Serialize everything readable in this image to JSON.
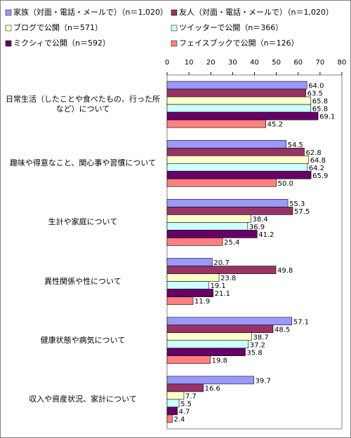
{
  "chart_data": {
    "type": "hbar",
    "categories": [
      "日常生活（したことや食べたもの、行った所など）について",
      "趣味や得意なこと、関心事や習慣について",
      "生計や家庭について",
      "異性関係や性について",
      "健康状態や病気について",
      "収入や資産状況、家計について"
    ],
    "series": [
      {
        "name": "家族（対面・電話・メールで）（n＝1,020）",
        "color": "#9999ff",
        "values": [
          64.0,
          54.5,
          55.3,
          20.7,
          57.1,
          39.7
        ],
        "value_labels": [
          "64.0",
          "54.5",
          "55.3",
          "20.7",
          "57.1",
          "39.7"
        ]
      },
      {
        "name": "友人（対面・電話・メールで）（n＝1,020）",
        "color": "#993366",
        "values": [
          63.5,
          62.8,
          57.5,
          49.8,
          48.5,
          16.6
        ],
        "value_labels": [
          "63.5",
          "62.8",
          "57.5",
          "49.8",
          "48.5",
          "16.6"
        ]
      },
      {
        "name": "ブログで公開（n＝571）",
        "color": "#ffffcc",
        "values": [
          65.8,
          64.8,
          38.4,
          23.8,
          38.7,
          7.7
        ],
        "value_labels": [
          "65.8",
          "64.8",
          "38.4",
          "23.8",
          "38.7",
          "7.7"
        ]
      },
      {
        "name": "ツイッターで公開（n＝366）",
        "color": "#ccffff",
        "values": [
          65.8,
          64.2,
          36.9,
          19.1,
          37.2,
          5.5
        ],
        "value_labels": [
          "65.8",
          "64.2",
          "36.9",
          "19.1",
          "37.2",
          "5.5"
        ]
      },
      {
        "name": "ミクシィで公開（n＝592）",
        "color": "#660066",
        "values": [
          69.1,
          65.9,
          41.2,
          21.1,
          35.8,
          4.7
        ],
        "value_labels": [
          "69.1",
          "65.9",
          "41.2",
          "21.1",
          "35.8",
          "4.7"
        ]
      },
      {
        "name": "フェイスブックで公開（n＝126）",
        "color": "#ff8080",
        "values": [
          45.2,
          50.0,
          25.4,
          11.9,
          19.8,
          2.4
        ],
        "value_labels": [
          "45.2",
          "50.0",
          "25.4",
          "11.9",
          "19.8",
          "2.4"
        ]
      }
    ],
    "xlim": [
      0,
      80
    ],
    "xticks": [
      0,
      10,
      20,
      30,
      40,
      50,
      60,
      70,
      80
    ],
    "grid": false
  }
}
